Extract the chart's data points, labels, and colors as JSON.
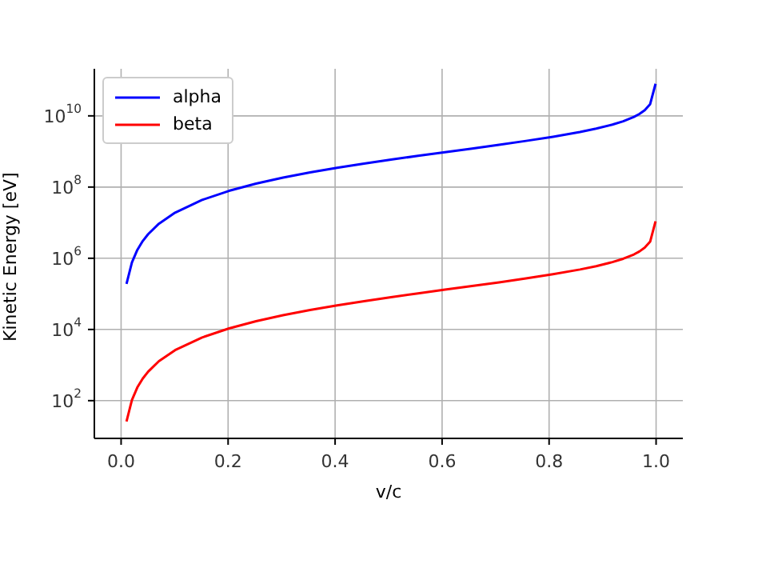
{
  "chart_data": {
    "type": "line",
    "xlabel": "v/c",
    "ylabel": "Kinetic Energy [eV]",
    "log": "y",
    "grid": true,
    "legend": "top left",
    "marker": "none",
    "line_style": "solid",
    "x": [
      0.0101,
      0.0202,
      0.0303,
      0.0404,
      0.0505,
      0.0706,
      0.1009,
      0.1514,
      0.2018,
      0.2523,
      0.3027,
      0.3532,
      0.4036,
      0.4541,
      0.5045,
      0.555,
      0.6055,
      0.6559,
      0.7064,
      0.7568,
      0.8073,
      0.8577,
      0.888,
      0.9183,
      0.9385,
      0.9586,
      0.9687,
      0.9788,
      0.9889,
      0.999
    ],
    "xlim": [
      -0.05,
      1.05
    ],
    "xticks": [
      {
        "value": 0,
        "label": "0.0"
      },
      0.2,
      0.4,
      0.6,
      0.8,
      {
        "value": 1,
        "label": "1.0"
      }
    ],
    "ylim": [
      8.7,
      210000000000.0
    ],
    "yticks": [
      {
        "value": 100,
        "label": "10$^{2}$"
      },
      {
        "value": 10000,
        "label": "10$^{4}$"
      },
      {
        "value": 1000000,
        "label": "10$^{6}$"
      },
      {
        "value": 100000000,
        "label": "10$^{8}$"
      },
      {
        "value": 10000000000,
        "label": "10$^{10}$"
      }
    ],
    "series": [
      {
        "name": "alpha",
        "color": "#0000ff",
        "values": [
          190000,
          759000,
          1710000,
          3040000,
          4750000,
          9330000,
          19100000,
          43500000,
          78300000,
          125000000,
          184000000,
          257000000,
          347000000,
          456000000,
          590000000,
          754000000,
          956000000,
          1210000000,
          1540000000,
          1980000000,
          2590000000,
          3520000000,
          4380000000,
          5690000000,
          7060000000,
          9370000000,
          11300000000,
          14500000000,
          21400000000,
          79600000000
        ]
      },
      {
        "name": "beta",
        "color": "#ff0000",
        "values": [
          26,
          104,
          235,
          417,
          652,
          1280,
          2620,
          5960,
          10700,
          17100,
          25200,
          35200,
          47500,
          62500,
          80900,
          103000,
          131000,
          166000,
          211000,
          271000,
          355000,
          483000,
          600000,
          780000,
          968000,
          1280000,
          1550000,
          1990000,
          2930000,
          10900000
        ]
      }
    ]
  }
}
